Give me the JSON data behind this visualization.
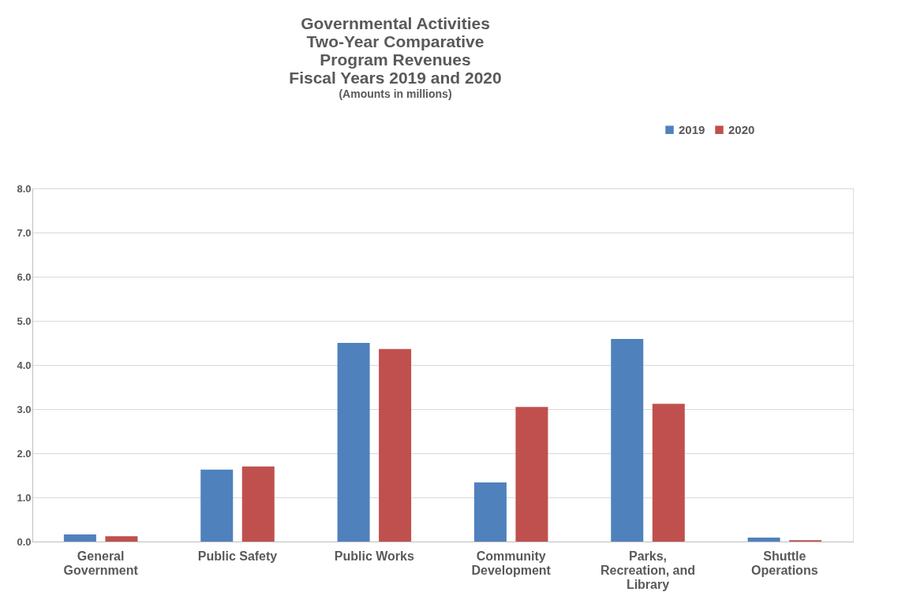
{
  "chart_data": {
    "type": "bar",
    "title": [
      "Governmental Activities",
      "Two-Year Comparative",
      "Program Revenues",
      "Fiscal Years 2019 and 2020"
    ],
    "subtitle": "(Amounts in millions)",
    "categories": [
      "General Government",
      "Public Safety",
      "Public Works",
      "Community Development",
      "Parks, Recreation, and Library",
      "Shuttle Operations"
    ],
    "series": [
      {
        "name": "2019",
        "color": "#4f81bd",
        "values": [
          0.16,
          1.63,
          4.5,
          1.34,
          4.59,
          0.09
        ]
      },
      {
        "name": "2020",
        "color": "#c0504d",
        "values": [
          0.12,
          1.7,
          4.36,
          3.05,
          3.12,
          0.03
        ]
      }
    ],
    "ylim": [
      0,
      8
    ],
    "yticks": [
      {
        "value": 0,
        "label": "0.0"
      },
      {
        "value": 1,
        "label": "1.0"
      },
      {
        "value": 2,
        "label": "2.0"
      },
      {
        "value": 3,
        "label": "3.0"
      },
      {
        "value": 4,
        "label": "4.0"
      },
      {
        "value": 5,
        "label": "5.0"
      },
      {
        "value": 6,
        "label": "6.0"
      },
      {
        "value": 7,
        "label": "7.0"
      },
      {
        "value": 8,
        "label": "8.0"
      }
    ],
    "grid": "y",
    "legend": "top"
  }
}
